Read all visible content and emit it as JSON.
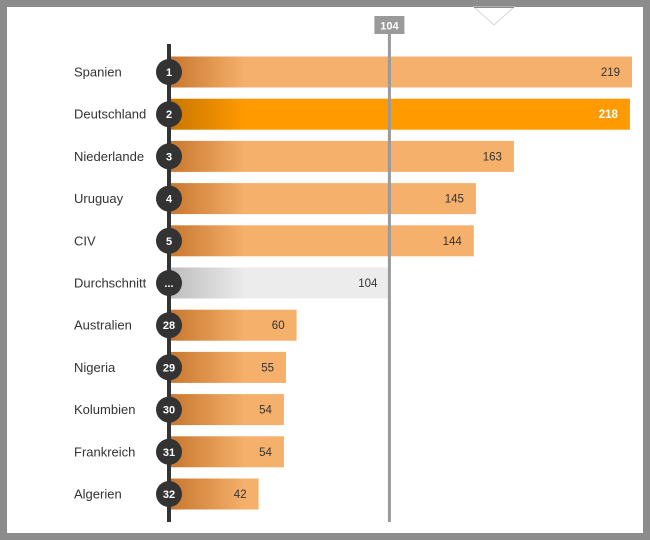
{
  "chart_data": {
    "type": "bar",
    "orientation": "horizontal",
    "reference_line": {
      "value": 104,
      "label": "104"
    },
    "xlim": [
      0,
      219
    ],
    "items": [
      {
        "rank": "1",
        "category": "Spanien",
        "value": 219,
        "value_label": "219",
        "style": "normal"
      },
      {
        "rank": "2",
        "category": "Deutschland",
        "value": 218,
        "value_label": "218",
        "style": "highlight"
      },
      {
        "rank": "3",
        "category": "Niederlande",
        "value": 163,
        "value_label": "163",
        "style": "normal"
      },
      {
        "rank": "4",
        "category": "Uruguay",
        "value": 145,
        "value_label": "145",
        "style": "normal"
      },
      {
        "rank": "5",
        "category": "CIV",
        "value": 144,
        "value_label": "144",
        "style": "normal"
      },
      {
        "rank": "...",
        "category": "Durchschnitt",
        "value": 104,
        "value_label": "104",
        "style": "average"
      },
      {
        "rank": "28",
        "category": "Australien",
        "value": 60,
        "value_label": "60",
        "style": "normal"
      },
      {
        "rank": "29",
        "category": "Nigeria",
        "value": 55,
        "value_label": "55",
        "style": "normal"
      },
      {
        "rank": "30",
        "category": "Kolumbien",
        "value": 54,
        "value_label": "54",
        "style": "normal"
      },
      {
        "rank": "31",
        "category": "Frankreich",
        "value": 54,
        "value_label": "54",
        "style": "normal"
      },
      {
        "rank": "32",
        "category": "Algerien",
        "value": 42,
        "value_label": "42",
        "style": "normal"
      }
    ],
    "colors": {
      "bar": "#f5b06b",
      "bar_gradient_start": "#c8772e",
      "highlight": "#ff9a00",
      "highlight_gradient_start": "#c97600",
      "average": "#ececec",
      "average_gradient_start": "#bdbdbd",
      "axis": "#333333",
      "reference_line": "#9a9a9a",
      "rank_circle": "#333333"
    }
  }
}
